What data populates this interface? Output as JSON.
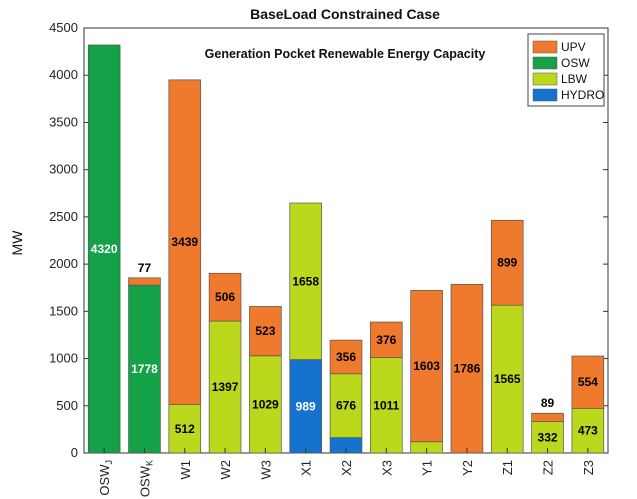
{
  "chart_data": {
    "type": "bar",
    "stacked": true,
    "title": "BaseLoad Constrained Case",
    "subtitle": "Generation Pocket Renewable Energy Capacity",
    "ylabel": "MW",
    "xlabel": "",
    "ylim": [
      0,
      4500
    ],
    "yticks": [
      0,
      500,
      1000,
      1500,
      2000,
      2500,
      3000,
      3500,
      4000,
      4500
    ],
    "grid": false,
    "legend_position": "top-right",
    "categories": [
      {
        "main": "OSW",
        "sub": "J"
      },
      {
        "main": "OSW",
        "sub": "K"
      },
      {
        "main": "W1",
        "sub": ""
      },
      {
        "main": "W2",
        "sub": ""
      },
      {
        "main": "W3",
        "sub": ""
      },
      {
        "main": "X1",
        "sub": ""
      },
      {
        "main": "X2",
        "sub": ""
      },
      {
        "main": "X3",
        "sub": ""
      },
      {
        "main": "Y1",
        "sub": ""
      },
      {
        "main": "Y2",
        "sub": ""
      },
      {
        "main": "Z1",
        "sub": ""
      },
      {
        "main": "Z2",
        "sub": ""
      },
      {
        "main": "Z3",
        "sub": ""
      }
    ],
    "series": [
      {
        "name": "UPV",
        "color": "#ef7a2d",
        "label_color": "#000000",
        "values": [
          0,
          77,
          3439,
          506,
          523,
          0,
          356,
          376,
          1603,
          1786,
          899,
          89,
          554
        ]
      },
      {
        "name": "OSW",
        "color": "#14a148",
        "label_color": "#ffffff",
        "values": [
          4320,
          1778,
          0,
          0,
          0,
          0,
          0,
          0,
          0,
          0,
          0,
          0,
          0
        ]
      },
      {
        "name": "LBW",
        "color": "#bcd81c",
        "label_color": "#000000",
        "values": [
          0,
          0,
          512,
          1397,
          1029,
          1658,
          676,
          1011,
          119,
          0,
          1565,
          332,
          473
        ]
      },
      {
        "name": "HYDRO",
        "color": "#1672cf",
        "label_color": "#ffffff",
        "values": [
          0,
          0,
          0,
          0,
          0,
          989,
          163,
          0,
          0,
          0,
          0,
          0,
          0
        ]
      }
    ],
    "stack_order": [
      "HYDRO",
      "OSW",
      "LBW",
      "UPV"
    ]
  }
}
